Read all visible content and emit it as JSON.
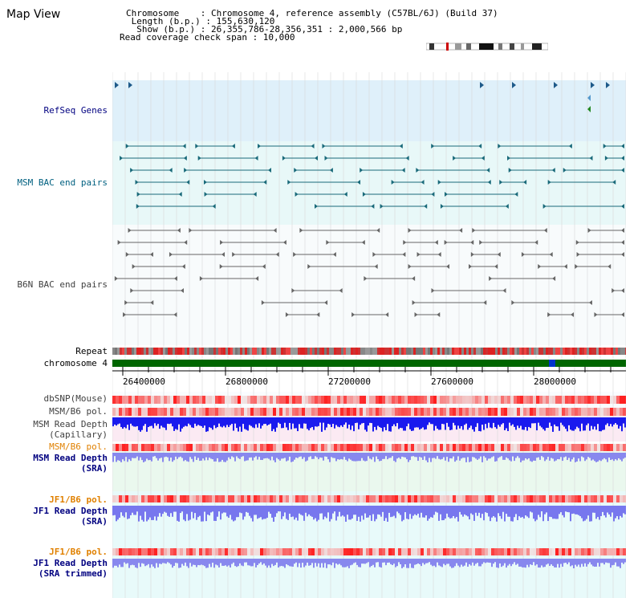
{
  "header": {
    "title": "Map View",
    "chromosome_line": "Chromosome    : Chromosome 4, reference assembly (C57BL/6J) (Build 37)",
    "length_line": " Length (b.p.) : 155,630,120",
    "show_line": "  Show (b.p.) : 26,355,786-28,356,351 : 2,000,566 bp",
    "coverage_line": "Read coverage check span : 10,000"
  },
  "tracks": {
    "refseq_genes": "RefSeq Genes",
    "msm_bac": "MSM BAC end pairs",
    "b6n_bac": "B6N BAC end pairs",
    "repeat": "Repeat",
    "chromosome": "chromosome 4",
    "dbsnp": "dbSNP(Mouse)",
    "msm_b6_pol_1": "MSM/B6 pol.",
    "msm_read_depth_cap_1": "MSM Read Depth",
    "msm_read_depth_cap_2": "(Capillary)",
    "msm_b6_pol_2": "MSM/B6 pol.",
    "msm_read_depth_sra_1": "MSM Read Depth",
    "msm_read_depth_sra_2": "(SRA)",
    "jf1_b6_pol_1": "JF1/B6 pol.",
    "jf1_read_depth_sra_1": "JF1 Read Depth",
    "jf1_read_depth_sra_2": "(SRA)",
    "jf1_b6_pol_2": "JF1/B6 pol.",
    "jf1_read_depth_trim_1": "JF1 Read Depth",
    "jf1_read_depth_trim_2": "(SRA trimmed)"
  },
  "axis": {
    "ticks": [
      "26400000",
      "26800000",
      "27200000",
      "27600000",
      "28000000"
    ]
  },
  "colors": {
    "navy_label": "#000080",
    "teal_label": "#006080",
    "orange_label": "#e08000",
    "gray_label": "#404040",
    "refseq_bg": "#dff0fa",
    "msm_bac_bg": "#e8f8f8",
    "chromosome_bar": "#006600",
    "depth_blue": "#1a1aee",
    "depth_lavender": "#8888ee"
  }
}
